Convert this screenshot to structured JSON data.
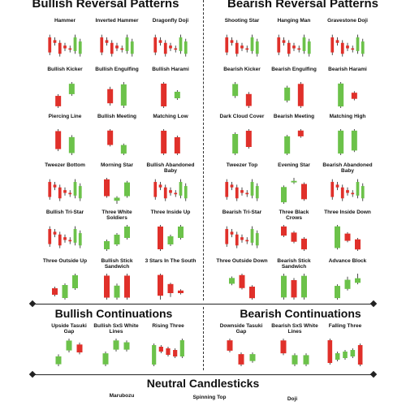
{
  "colors": {
    "bull": "#6cc24a",
    "bear": "#e0302a",
    "wick": "#222222"
  },
  "headers": {
    "bullish_reversal": "Bullish Reversal Patterns",
    "bearish_reversal": "Bearish Reversal Patterns",
    "bullish_continuations": "Bullish Continuations",
    "bearish_continuations": "Bearish Continuations",
    "neutral": "Neutral Candlesticks"
  },
  "bullish_reversal": [
    {
      "label": "Hammer",
      "candles": [
        [
          18,
          10,
          10,
          2,
          12
        ],
        [
          16,
          11,
          11,
          4,
          13
        ],
        [
          14,
          9,
          9,
          5,
          11
        ],
        [
          12,
          7,
          7,
          2,
          9
        ],
        [
          10,
          12,
          12,
          9,
          16
        ],
        [
          8,
          15,
          15,
          12,
          19
        ],
        [
          6,
          18,
          18,
          15,
          21
        ]
      ]
    },
    {
      "label": "Inverted Hammer",
      "candles": [
        [
          18,
          10,
          10,
          2,
          12
        ],
        [
          16,
          11,
          11,
          4,
          13
        ],
        [
          14,
          9,
          9,
          5,
          11
        ],
        [
          12,
          7,
          7,
          2,
          9
        ],
        [
          10,
          12,
          12,
          9,
          16
        ],
        [
          8,
          15,
          15,
          12,
          19
        ],
        [
          6,
          18,
          18,
          15,
          21
        ]
      ]
    },
    {
      "label": "Dragonfly Doji",
      "candles": [
        [
          18,
          10,
          10,
          2,
          12
        ],
        [
          16,
          11,
          11,
          4,
          13
        ],
        [
          14,
          9,
          9,
          5,
          11
        ],
        [
          12,
          7,
          7,
          2,
          9
        ],
        [
          10,
          12,
          12,
          9,
          16
        ],
        [
          8,
          15,
          15,
          12,
          19
        ],
        [
          6,
          18,
          18,
          15,
          21
        ]
      ]
    },
    {
      "label": "Bullish Kicker",
      "candles": [
        [
          15,
          9,
          16,
          8
        ],
        [
          16,
          22,
          23,
          15
        ]
      ]
    },
    {
      "label": "Bullish Engulfing",
      "candles": [
        [
          16,
          10,
          17,
          9
        ],
        [
          9,
          18,
          19,
          8
        ]
      ]
    },
    {
      "label": "Bullish Harami",
      "candles": [
        [
          20,
          6,
          21,
          5
        ],
        [
          11,
          15,
          16,
          10
        ]
      ]
    },
    {
      "label": "Piercing Line",
      "candles": [
        [
          20,
          11,
          21,
          10
        ],
        [
          9,
          17,
          18,
          8
        ]
      ]
    },
    {
      "label": "Bullish Meeting",
      "candles": [
        [
          20,
          10,
          21,
          9
        ],
        [
          4,
          10,
          11,
          3
        ]
      ]
    },
    {
      "label": "Matching Low",
      "candles": [
        [
          22,
          8,
          23,
          7
        ],
        [
          18,
          8,
          19,
          7
        ]
      ]
    },
    {
      "label": "Tweezer Bottom",
      "candles": [
        [
          18,
          10,
          10,
          2,
          12
        ],
        [
          16,
          11,
          11,
          4,
          13
        ],
        [
          14,
          9,
          9,
          5,
          11
        ],
        [
          12,
          7,
          7,
          2,
          9
        ],
        [
          10,
          12,
          12,
          9,
          16
        ],
        [
          8,
          15,
          15,
          12,
          19
        ],
        [
          6,
          18,
          18,
          15,
          21
        ]
      ]
    },
    {
      "label": "Morning Star",
      "candles": [
        [
          21,
          10,
          22,
          9
        ],
        [
          7,
          9,
          10,
          5
        ],
        [
          10,
          19,
          20,
          9
        ]
      ]
    },
    {
      "label": "Bullish Abandoned\nBaby",
      "candles": [
        [
          18,
          10,
          10,
          2,
          12
        ],
        [
          16,
          11,
          11,
          4,
          13
        ],
        [
          14,
          9,
          9,
          5,
          11
        ],
        [
          12,
          7,
          7,
          2,
          9
        ],
        [
          10,
          12,
          12,
          9,
          16
        ],
        [
          8,
          15,
          15,
          12,
          19
        ],
        [
          6,
          18,
          18,
          15,
          21
        ]
      ]
    },
    {
      "label": "Bullish Tri-Star",
      "candles": [
        [
          18,
          10,
          10,
          2,
          12
        ],
        [
          16,
          11,
          11,
          4,
          13
        ],
        [
          14,
          9,
          9,
          5,
          11
        ],
        [
          12,
          7,
          7,
          2,
          9
        ],
        [
          10,
          12,
          12,
          9,
          16
        ],
        [
          8,
          15,
          15,
          12,
          19
        ],
        [
          6,
          18,
          18,
          15,
          21
        ]
      ]
    },
    {
      "label": "Three White\nSoldiers",
      "candles": [
        [
          6,
          11,
          12,
          5
        ],
        [
          9,
          15,
          16,
          8
        ],
        [
          13,
          20,
          21,
          12
        ]
      ]
    },
    {
      "label": "Three Inside Up",
      "candles": [
        [
          21,
          7,
          22,
          6
        ],
        [
          10,
          15,
          16,
          9
        ],
        [
          14,
          21,
          22,
          13
        ]
      ]
    },
    {
      "label": "Three Outside Up",
      "candles": [
        [
          12,
          8,
          13,
          7
        ],
        [
          6,
          14,
          15,
          5
        ],
        [
          12,
          20,
          21,
          11
        ]
      ]
    },
    {
      "label": "Bullish Stick\nSandwich",
      "candles": [
        [
          20,
          9,
          21,
          8
        ],
        [
          9,
          15,
          16,
          8
        ],
        [
          20,
          9,
          21,
          8
        ]
      ]
    },
    {
      "label": "3 Stars In The South",
      "candles": [
        [
          21,
          5,
          22,
          2
        ],
        [
          14,
          7,
          15,
          4
        ],
        [
          9,
          7,
          10,
          6
        ]
      ]
    }
  ],
  "bearish_reversal": [
    {
      "label": "Shooting Star",
      "candles": [
        [
          18,
          10,
          10,
          2,
          12
        ],
        [
          16,
          11,
          11,
          4,
          13
        ],
        [
          14,
          9,
          9,
          5,
          11
        ],
        [
          12,
          7,
          7,
          2,
          9
        ],
        [
          10,
          12,
          12,
          9,
          16
        ],
        [
          8,
          15,
          15,
          12,
          19
        ],
        [
          6,
          18,
          18,
          15,
          21
        ]
      ]
    },
    {
      "label": "Hanging Man",
      "candles": [
        [
          18,
          10,
          10,
          2,
          12
        ],
        [
          16,
          11,
          11,
          4,
          13
        ],
        [
          14,
          9,
          9,
          5,
          11
        ],
        [
          12,
          7,
          7,
          2,
          9
        ],
        [
          10,
          12,
          12,
          9,
          16
        ],
        [
          8,
          15,
          15,
          12,
          19
        ],
        [
          6,
          18,
          18,
          15,
          21
        ]
      ]
    },
    {
      "label": "Gravestone Doji",
      "candles": [
        [
          18,
          10,
          10,
          2,
          12
        ],
        [
          16,
          11,
          11,
          4,
          13
        ],
        [
          14,
          9,
          9,
          5,
          11
        ],
        [
          12,
          7,
          7,
          2,
          9
        ],
        [
          10,
          12,
          12,
          9,
          16
        ],
        [
          8,
          15,
          15,
          12,
          19
        ],
        [
          6,
          18,
          18,
          15,
          21
        ]
      ]
    },
    {
      "label": "Bearish Kicker",
      "candles": [
        [
          9,
          15,
          16,
          8
        ],
        [
          10,
          4,
          11,
          3
        ]
      ]
    },
    {
      "label": "Bearish Engulfing",
      "candles": [
        [
          9,
          16,
          17,
          8
        ],
        [
          18,
          6,
          19,
          5
        ]
      ]
    },
    {
      "label": "Bearish Harami",
      "candles": [
        [
          5,
          20,
          21,
          4
        ],
        [
          14,
          10,
          15,
          9
        ]
      ]
    },
    {
      "label": "Dark Cloud Cover",
      "candles": [
        [
          8,
          20,
          21,
          7
        ],
        [
          22,
          12,
          23,
          11
        ]
      ]
    },
    {
      "label": "Bearish Meeting",
      "candles": [
        [
          8,
          20,
          21,
          7
        ],
        [
          24,
          20,
          25,
          19
        ]
      ]
    },
    {
      "label": "Matching High",
      "candles": [
        [
          6,
          21,
          22,
          5
        ],
        [
          8,
          21,
          22,
          7
        ]
      ]
    },
    {
      "label": "Tweezer Top",
      "candles": [
        [
          18,
          10,
          10,
          2,
          12
        ],
        [
          16,
          11,
          11,
          4,
          13
        ],
        [
          14,
          9,
          9,
          5,
          11
        ],
        [
          12,
          7,
          7,
          2,
          9
        ],
        [
          10,
          12,
          12,
          9,
          16
        ],
        [
          8,
          15,
          15,
          12,
          19
        ],
        [
          6,
          18,
          18,
          15,
          21
        ]
      ]
    },
    {
      "label": "Evening Star",
      "candles": [
        [
          6,
          16,
          17,
          5
        ],
        [
          19,
          20,
          22,
          18
        ],
        [
          18,
          8,
          19,
          7
        ]
      ]
    },
    {
      "label": "Bearish Abandoned\nBaby",
      "candles": [
        [
          18,
          10,
          10,
          2,
          12
        ],
        [
          16,
          11,
          11,
          4,
          13
        ],
        [
          14,
          9,
          9,
          5,
          11
        ],
        [
          12,
          7,
          7,
          2,
          9
        ],
        [
          10,
          12,
          12,
          9,
          16
        ],
        [
          8,
          15,
          15,
          12,
          19
        ],
        [
          6,
          18,
          18,
          15,
          21
        ]
      ]
    },
    {
      "label": "Bearish Tri-Star",
      "candles": [
        [
          18,
          10,
          10,
          2,
          12
        ],
        [
          16,
          11,
          11,
          4,
          13
        ],
        [
          14,
          9,
          9,
          5,
          11
        ],
        [
          12,
          7,
          7,
          2,
          9
        ],
        [
          10,
          12,
          12,
          9,
          16
        ],
        [
          8,
          15,
          15,
          12,
          19
        ],
        [
          6,
          18,
          18,
          15,
          21
        ]
      ]
    },
    {
      "label": "Three Black\nCrows",
      "candles": [
        [
          21,
          15,
          22,
          14
        ],
        [
          17,
          11,
          18,
          10
        ],
        [
          13,
          6,
          14,
          5
        ]
      ]
    },
    {
      "label": "Three Inside Down",
      "candles": [
        [
          6,
          21,
          22,
          5
        ],
        [
          16,
          11,
          17,
          10
        ],
        [
          12,
          5,
          13,
          4
        ]
      ]
    },
    {
      "label": "Three Outside Down",
      "candles": [
        [
          16,
          20,
          21,
          15
        ],
        [
          22,
          13,
          23,
          12
        ],
        [
          14,
          6,
          15,
          5
        ]
      ]
    },
    {
      "label": "Bearish Stick\nSandwich",
      "candles": [
        [
          8,
          18,
          19,
          7
        ],
        [
          16,
          8,
          17,
          7
        ],
        [
          8,
          18,
          19,
          7
        ]
      ]
    },
    {
      "label": "Advance Block",
      "candles": [
        [
          6,
          14,
          15,
          5
        ],
        [
          12,
          18,
          20,
          11
        ],
        [
          16,
          19,
          22,
          15
        ]
      ]
    }
  ],
  "bullish_continuations": [
    {
      "label": "Upside Tasuki\nGap",
      "candles": [
        [
          6,
          10,
          11,
          5
        ],
        [
          13,
          18,
          19,
          12
        ],
        [
          16,
          12,
          17,
          11
        ]
      ]
    },
    {
      "label": "Bullish SxS White\nLines",
      "candles": [
        [
          6,
          12,
          13,
          5
        ],
        [
          14,
          19,
          20,
          13
        ],
        [
          14,
          18,
          19,
          13
        ]
      ]
    },
    {
      "label": "Rising Three",
      "candles": [
        [
          5,
          17,
          18,
          4
        ],
        [
          16,
          13,
          17,
          12
        ],
        [
          15,
          11,
          16,
          10
        ],
        [
          14,
          10,
          15,
          9
        ],
        [
          10,
          20,
          21,
          9
        ]
      ]
    }
  ],
  "bearish_continuations": [
    {
      "label": "Downside Tasuki\nGap",
      "candles": [
        [
          20,
          14,
          21,
          13
        ],
        [
          12,
          6,
          13,
          5
        ],
        [
          8,
          12,
          13,
          7
        ]
      ]
    },
    {
      "label": "Bearish SxS White\nLines",
      "candles": [
        [
          19,
          12,
          20,
          11
        ],
        [
          6,
          11,
          12,
          5
        ],
        [
          6,
          11,
          12,
          5
        ]
      ]
    },
    {
      "label": "Falling Three",
      "candles": [
        [
          20,
          6,
          21,
          5
        ],
        [
          8,
          12,
          13,
          7
        ],
        [
          9,
          13,
          14,
          8
        ],
        [
          10,
          14,
          15,
          9
        ],
        [
          17,
          5,
          18,
          4
        ]
      ]
    }
  ],
  "neutral": [
    {
      "label": "Marubozu"
    },
    {
      "label": "Spinning Top"
    },
    {
      "label": "Doji"
    }
  ]
}
